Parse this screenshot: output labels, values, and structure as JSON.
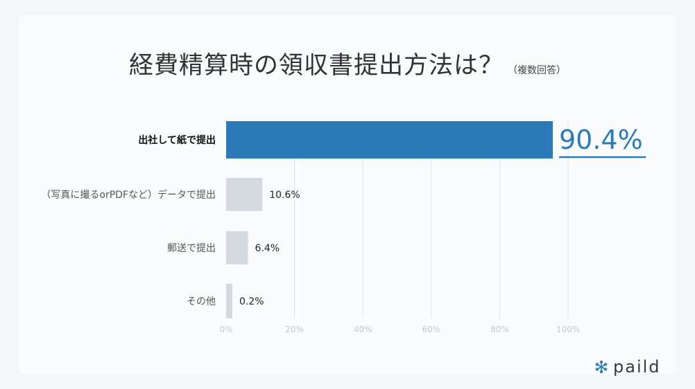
{
  "title": "経費精算時の領収書提出方法は？",
  "subtitle": "（複数回答）",
  "logo_text": "paild",
  "colors": {
    "highlight_bar": "#2b7bb9",
    "other_bar": "#d5dae0",
    "highlight_value": "#2b7bb9",
    "grid": "#dde3e8",
    "tick": "#c3c8ce",
    "label": "#555555",
    "label_highlight": "#111111",
    "logo_accent": "#2b7bb9"
  },
  "chart_data": {
    "type": "bar",
    "orientation": "horizontal",
    "categories": [
      "出社して紙で提出",
      "（写真に撮るorPDFなど）データで提出",
      "郵送で提出",
      "その他"
    ],
    "values": [
      90.4,
      10.6,
      6.4,
      0.2
    ],
    "value_labels": [
      "90.4%",
      "10.6%",
      "6.4%",
      "0.2%"
    ],
    "highlight_index": 0,
    "xlim": [
      0,
      100
    ],
    "x_ticks": [
      0,
      20,
      40,
      60,
      80,
      100
    ],
    "x_tick_labels": [
      "0%",
      "20%",
      "40%",
      "60%",
      "80%",
      "100%"
    ],
    "grid": true
  }
}
